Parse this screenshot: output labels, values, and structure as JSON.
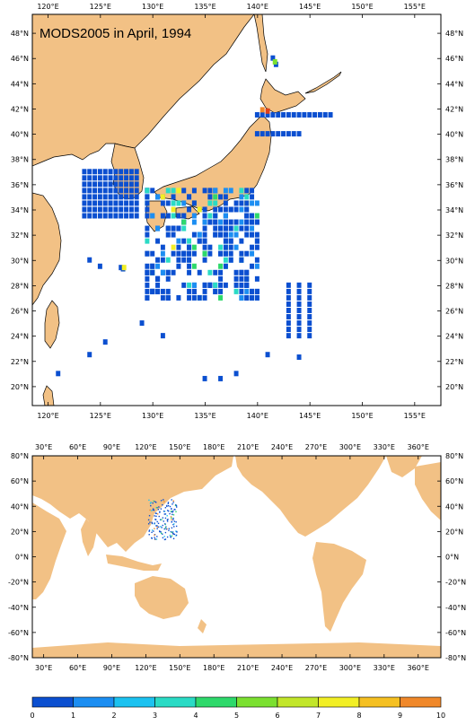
{
  "title": "MODS2005 in April, 1994",
  "top_map": {
    "lon_ticks": [
      "120°E",
      "125°E",
      "130°E",
      "135°E",
      "140°E",
      "145°E",
      "150°E",
      "155°E"
    ],
    "lat_ticks": [
      "48°N",
      "46°N",
      "44°N",
      "42°N",
      "40°N",
      "38°N",
      "36°N",
      "34°N",
      "32°N",
      "30°N",
      "28°N",
      "26°N",
      "24°N",
      "22°N",
      "20°N"
    ],
    "extent": {
      "lon": [
        118.5,
        157.5
      ],
      "lat": [
        18.5,
        49.5
      ]
    }
  },
  "bottom_map": {
    "lon_ticks": [
      "30°E",
      "60°E",
      "90°E",
      "120°E",
      "150°E",
      "180°E",
      "210°E",
      "240°E",
      "270°E",
      "300°E",
      "330°E",
      "360°E"
    ],
    "lat_ticks": [
      "80°N",
      "60°N",
      "40°N",
      "20°N",
      "0°N",
      "-20°N",
      "-40°N",
      "-60°N",
      "-80°N"
    ],
    "extent": {
      "lon": [
        20,
        380
      ],
      "lat": [
        -80,
        80
      ]
    }
  },
  "colorbar": {
    "labels": [
      "0",
      "1",
      "2",
      "3",
      "4",
      "5",
      "6",
      "7",
      "8",
      "9",
      "10"
    ],
    "colors": [
      "#0b4fd0",
      "#1c8ef2",
      "#1cc2f0",
      "#2adbc5",
      "#2ed96b",
      "#7be030",
      "#c2e62a",
      "#f2ef25",
      "#f5c022",
      "#f0882a",
      "#e0401a"
    ]
  },
  "colors": {
    "land": "#f2c185",
    "ocean": "#ffffff",
    "coast": "#000000"
  }
}
